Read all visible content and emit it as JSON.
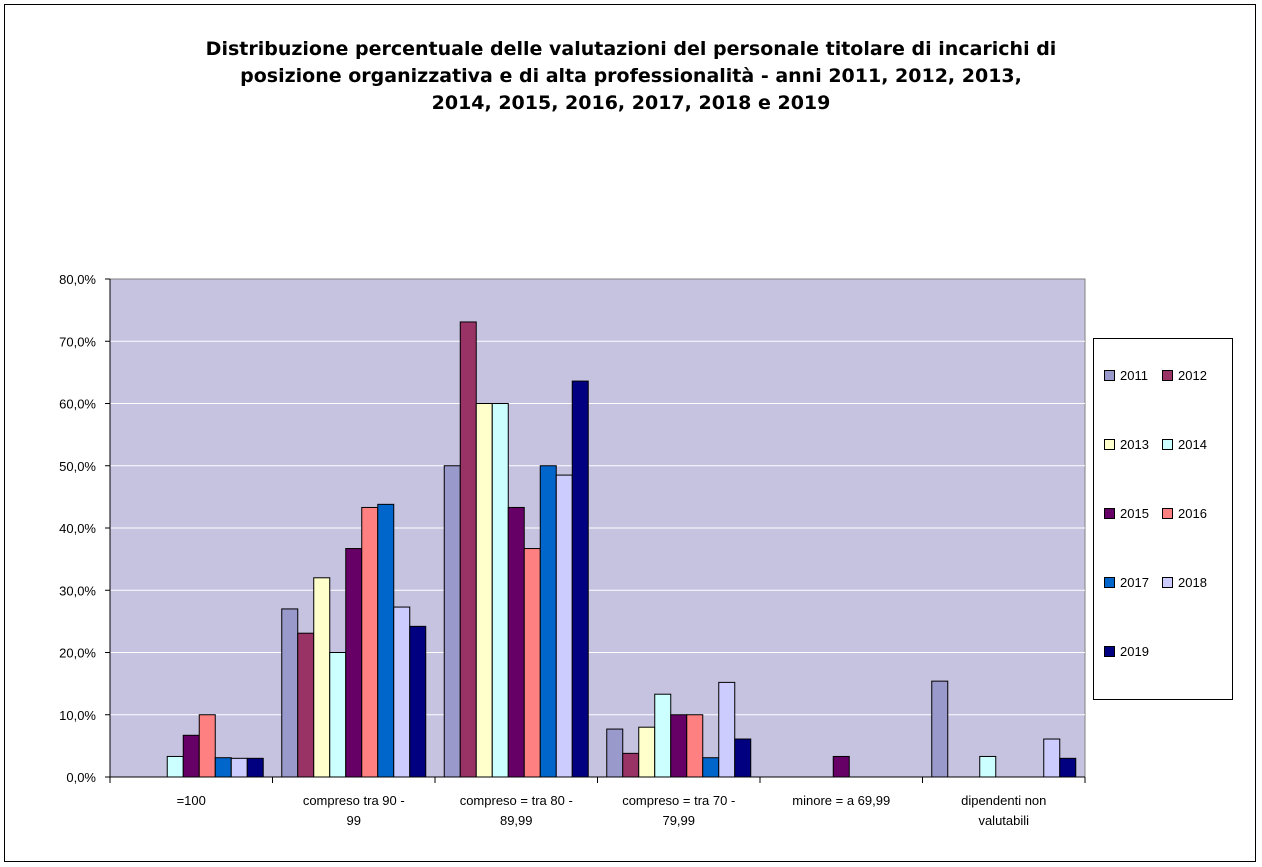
{
  "chart_data": {
    "type": "bar",
    "title": "Distribuzione percentuale delle valutazioni del personale titolare di incarichi di\nposizione organizzativa e di alta professionalità - anni 2011, 2012, 2013,\n2014, 2015, 2016, 2017, 2018 e 2019",
    "categories": [
      [
        "=100"
      ],
      [
        "compreso tra 90 -",
        "99"
      ],
      [
        "compreso = tra 80 -",
        "89,99"
      ],
      [
        "compreso = tra 70 -",
        "79,99"
      ],
      [
        "minore = a 69,99"
      ],
      [
        "dipendenti non",
        "valutabili"
      ]
    ],
    "ylim": [
      0,
      80
    ],
    "yticks": [
      "0,0%",
      "10,0%",
      "20,0%",
      "30,0%",
      "40,0%",
      "50,0%",
      "60,0%",
      "70,0%",
      "80,0%"
    ],
    "grid": true,
    "legend_position": "right",
    "series": [
      {
        "name": "2011",
        "color": "#9999cc",
        "values": [
          0,
          27,
          50,
          7.7,
          0,
          15.4
        ]
      },
      {
        "name": "2012",
        "color": "#993366",
        "values": [
          0,
          23.1,
          73.1,
          3.8,
          0,
          0
        ]
      },
      {
        "name": "2013",
        "color": "#ffffcc",
        "values": [
          0,
          32,
          60,
          8,
          0,
          0
        ]
      },
      {
        "name": "2014",
        "color": "#ccffff",
        "values": [
          3.3,
          20,
          60,
          13.3,
          0,
          3.3
        ]
      },
      {
        "name": "2015",
        "color": "#660066",
        "values": [
          6.7,
          36.7,
          43.3,
          10,
          3.3,
          0
        ]
      },
      {
        "name": "2016",
        "color": "#ff8080",
        "values": [
          10,
          43.3,
          36.7,
          10,
          0,
          0
        ]
      },
      {
        "name": "2017",
        "color": "#0066cc",
        "values": [
          3.1,
          43.8,
          50,
          3.1,
          0,
          0
        ]
      },
      {
        "name": "2018",
        "color": "#ccccff",
        "values": [
          3,
          27.3,
          48.5,
          15.2,
          0,
          6.1
        ]
      },
      {
        "name": "2019",
        "color": "#000080",
        "values": [
          3,
          24.2,
          63.6,
          6.1,
          0,
          3
        ]
      }
    ]
  }
}
